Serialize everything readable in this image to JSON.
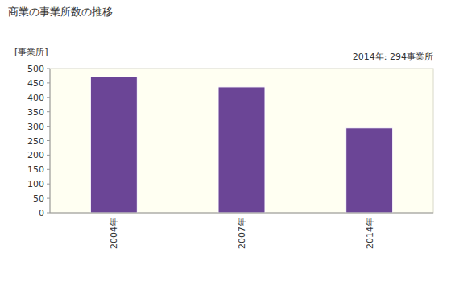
{
  "chart_data": {
    "type": "bar",
    "title": "商業の事業所数の推移",
    "y_label": "[事業所]",
    "annotation": "2014年: 294事業所",
    "categories": [
      "2004年",
      "2007年",
      "2014年"
    ],
    "values": [
      472,
      436,
      294
    ],
    "color": "#6b4596",
    "ylim": [
      0,
      500
    ],
    "yticks": [
      0,
      50,
      100,
      150,
      200,
      250,
      300,
      350,
      400,
      450,
      500
    ],
    "grid": false
  }
}
